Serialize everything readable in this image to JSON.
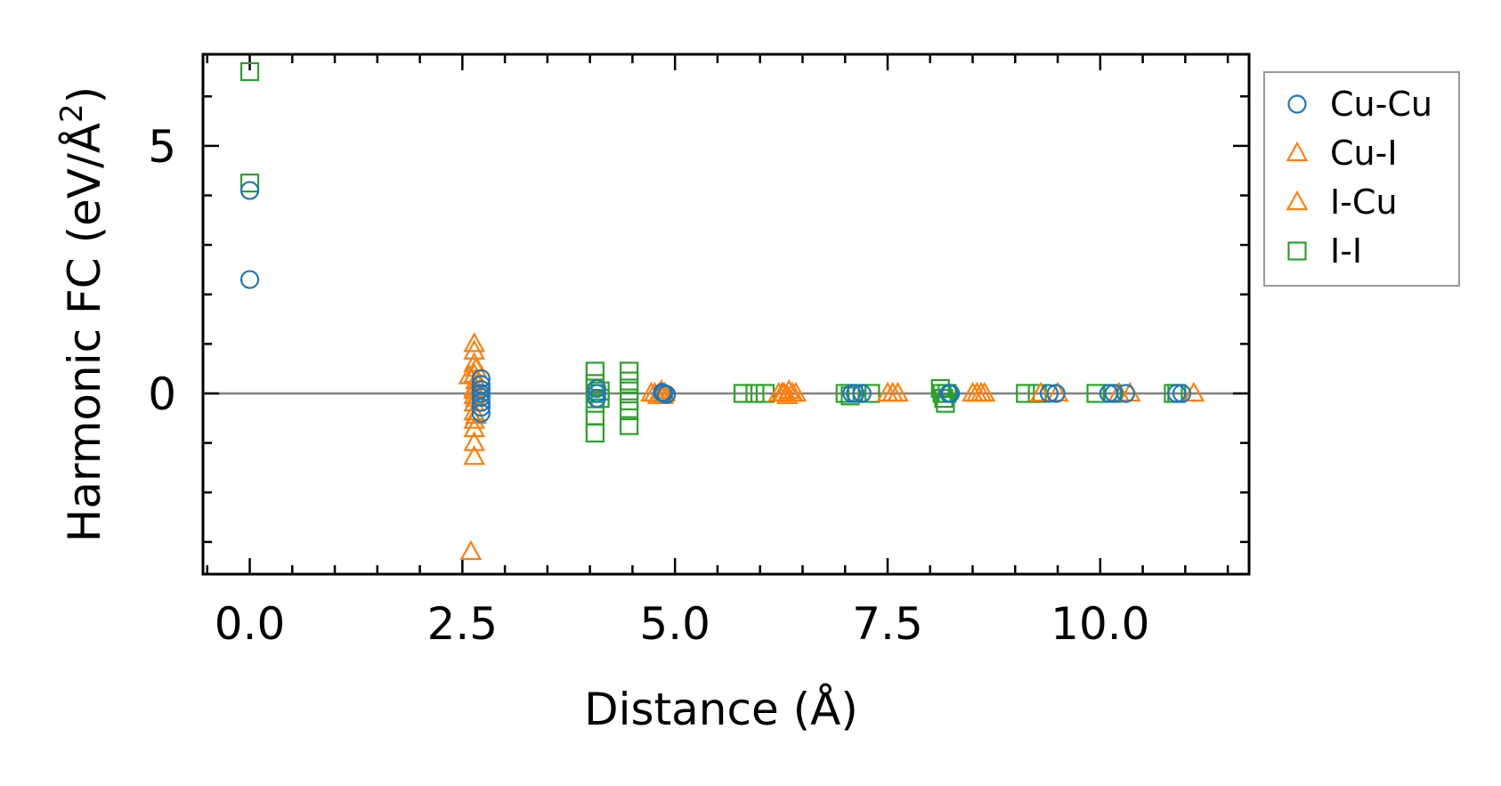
{
  "chart_data": {
    "type": "scatter",
    "title": "",
    "xlabel": "Distance (Å)",
    "ylabel_main": "Harmonic FC (eV/Å",
    "ylabel_sup": "2",
    "ylabel_close": ")",
    "xlim": [
      -0.55,
      11.75
    ],
    "ylim": [
      -3.65,
      6.85
    ],
    "xticks": [
      0.0,
      2.5,
      5.0,
      7.5,
      10.0
    ],
    "xtick_labels": [
      "0.0",
      "2.5",
      "5.0",
      "7.5",
      "10.0"
    ],
    "yticks": [
      0,
      5
    ],
    "ytick_labels": [
      "0",
      "5"
    ],
    "x_minor_step": 0.5,
    "y_minor_step": 1,
    "zero_line": true,
    "legend_position": "outside-right-top",
    "series": [
      {
        "name": "Cu-Cu",
        "marker": "circle",
        "color": "#1f77b4",
        "x": [
          0.0,
          0.0,
          2.72,
          2.72,
          2.72,
          2.72,
          2.72,
          2.72,
          2.72,
          2.72,
          4.08,
          4.08,
          4.08,
          4.85,
          4.87,
          4.9,
          7.08,
          7.12,
          7.2,
          8.22,
          8.24,
          9.4,
          9.48,
          10.1,
          10.16,
          10.3,
          10.9,
          10.96
        ],
        "y": [
          4.1,
          2.3,
          0.3,
          0.18,
          0.08,
          0.0,
          -0.08,
          -0.18,
          -0.28,
          -0.4,
          0.1,
          0.0,
          -0.1,
          0.02,
          0.0,
          -0.02,
          0.0,
          0.0,
          0.0,
          0.0,
          0.0,
          0.0,
          0.0,
          0.0,
          0.0,
          0.0,
          0.0,
          0.0
        ]
      },
      {
        "name": "Cu-I",
        "marker": "triangle",
        "color": "#ff7f0e",
        "x": [
          2.6,
          2.64,
          2.64,
          2.64,
          2.64,
          2.64,
          2.64,
          2.64,
          2.64,
          2.64,
          2.64,
          2.64,
          2.64,
          2.64,
          4.72,
          4.82,
          4.84,
          4.86,
          6.22,
          6.28,
          6.32,
          6.38,
          7.5,
          7.56,
          8.55,
          8.6,
          9.3,
          10.35
        ],
        "y": [
          -3.2,
          1.0,
          0.85,
          0.6,
          0.38,
          0.1,
          -0.2,
          -0.38,
          -0.55,
          -0.72,
          -1.0,
          -1.28,
          0.05,
          -0.05,
          0.0,
          0.0,
          0.05,
          -0.05,
          0.0,
          0.0,
          -0.05,
          0.0,
          0.0,
          0.0,
          0.0,
          0.0,
          0.0,
          0.0
        ]
      },
      {
        "name": "I-Cu",
        "marker": "triangle",
        "color": "#ff7f0e",
        "x": [
          2.58,
          2.66,
          2.66,
          2.66,
          2.66,
          4.76,
          4.8,
          4.88,
          6.26,
          6.34,
          6.42,
          7.62,
          8.5,
          8.64,
          9.5,
          10.22,
          11.1
        ],
        "y": [
          0.35,
          0.5,
          0.25,
          -0.1,
          -0.45,
          0.0,
          -0.05,
          0.0,
          0.0,
          0.05,
          0.0,
          0.0,
          0.0,
          0.0,
          0.0,
          0.0,
          0.0
        ]
      },
      {
        "name": "I-I",
        "marker": "square",
        "color": "#2ca02c",
        "x": [
          0.0,
          0.0,
          4.06,
          4.06,
          4.06,
          4.06,
          4.06,
          4.06,
          4.12,
          4.12,
          4.46,
          4.46,
          4.46,
          4.46,
          4.46,
          4.46,
          5.8,
          5.94,
          6.06,
          7.0,
          7.06,
          7.14,
          7.3,
          8.12,
          8.14,
          8.16,
          8.18,
          8.2,
          9.12,
          9.26,
          9.95,
          10.14,
          10.86,
          10.9
        ],
        "y": [
          6.5,
          4.25,
          0.45,
          0.2,
          0.0,
          -0.2,
          -0.45,
          -0.8,
          0.05,
          -0.1,
          0.45,
          0.25,
          0.05,
          -0.15,
          -0.35,
          -0.65,
          0.0,
          0.0,
          0.0,
          0.0,
          -0.05,
          0.0,
          0.0,
          0.1,
          0.0,
          -0.1,
          -0.2,
          0.0,
          0.0,
          0.0,
          0.0,
          0.0,
          0.0,
          0.0
        ]
      }
    ]
  }
}
